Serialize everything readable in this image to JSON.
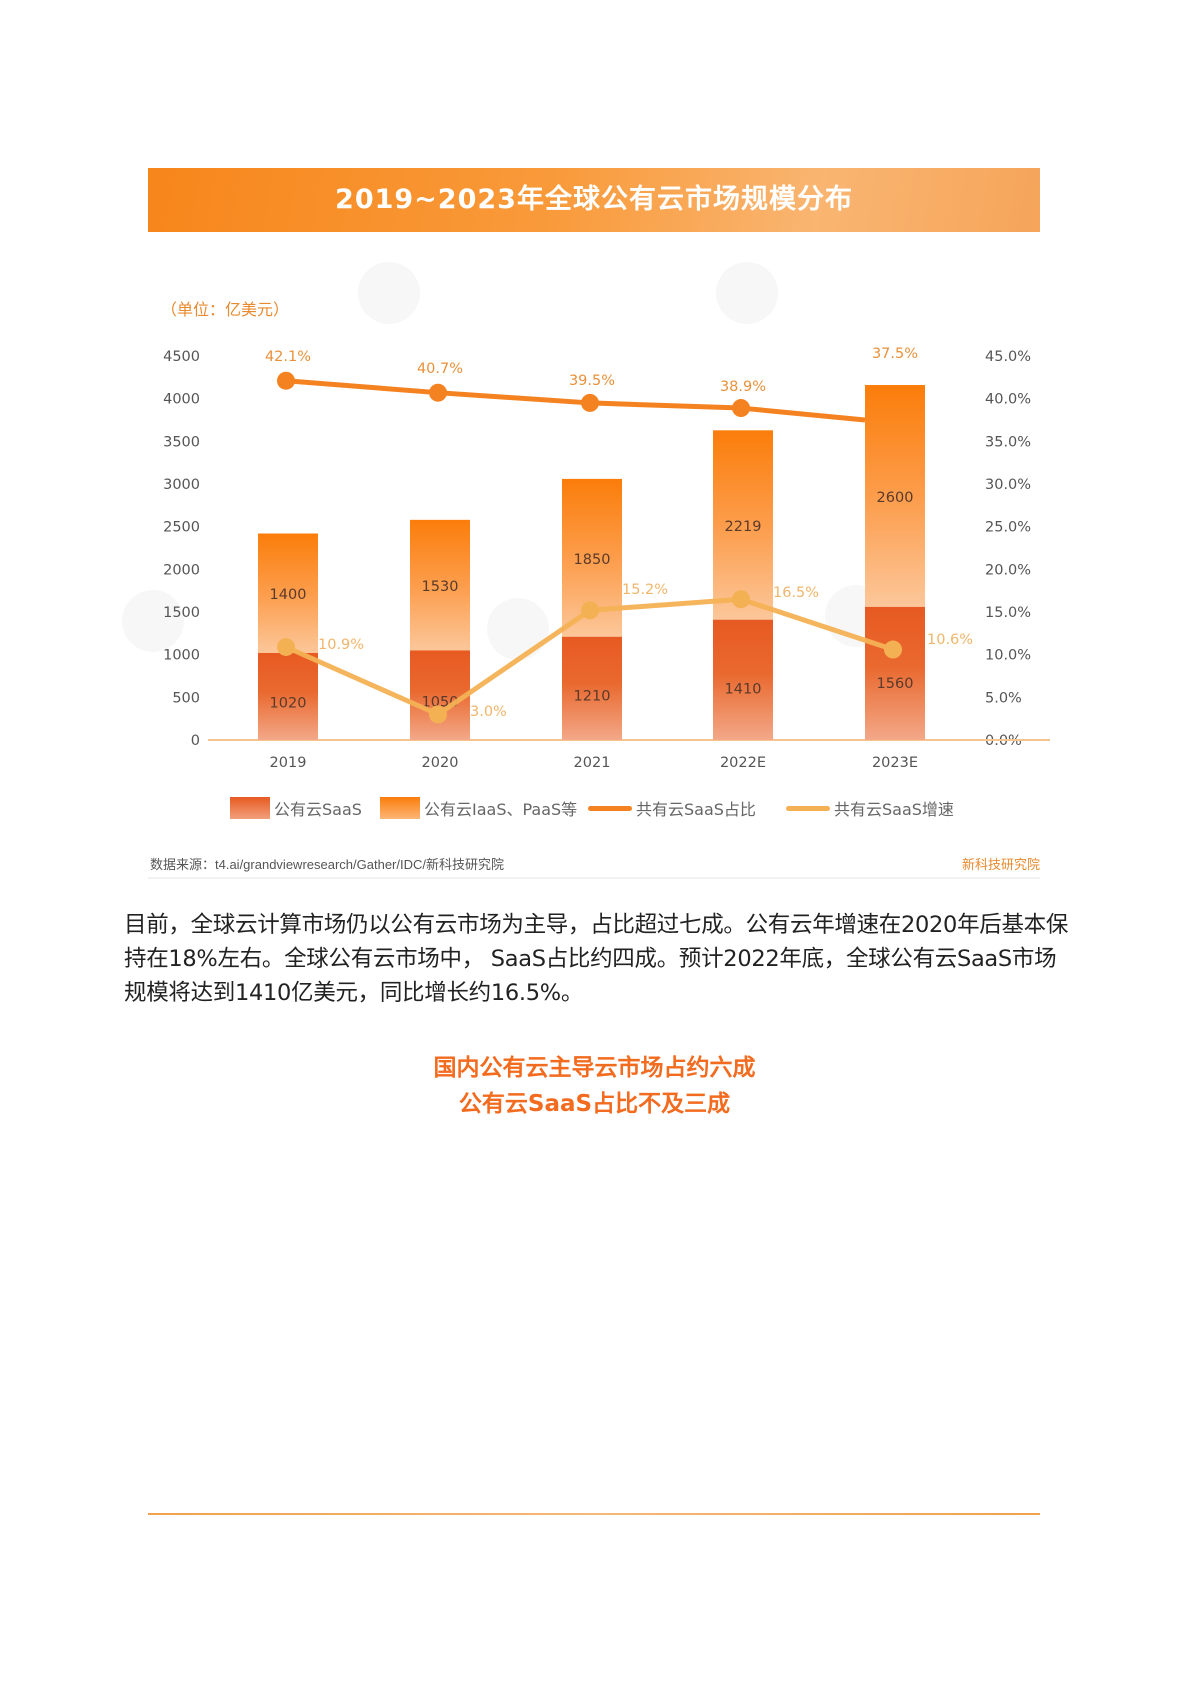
{
  "chart_header": {
    "title": "2019~2023年全球公有云市场规模分布",
    "unit": "（单位：亿美元）"
  },
  "chart_data": {
    "type": "bar",
    "subtype": "stacked bar with dual-axis lines",
    "title": "2019~2023年全球公有云市场规模分布",
    "unit": "亿美元",
    "categories": [
      "2019",
      "2020",
      "2021",
      "2022E",
      "2023E"
    ],
    "series": [
      {
        "name": "公有云SaaS",
        "kind": "bar",
        "axis": "left",
        "values": [
          1020,
          1050,
          1210,
          1410,
          1560
        ],
        "color": "#e85d25"
      },
      {
        "name": "公有云IaaS、PaaS等",
        "kind": "bar",
        "axis": "left",
        "values": [
          1400,
          1530,
          1850,
          2219,
          2600
        ],
        "color": "#f98214"
      },
      {
        "name": "共有云SaaS占比",
        "kind": "line",
        "axis": "right",
        "values": [
          42.1,
          40.7,
          39.5,
          38.9,
          37.5
        ],
        "labels": [
          "42.1%",
          "40.7%",
          "39.5%",
          "38.9%",
          "37.5%"
        ],
        "color": "#f58220"
      },
      {
        "name": "共有云SaaS增速",
        "kind": "line",
        "axis": "right",
        "values": [
          10.9,
          3.0,
          15.2,
          16.5,
          10.6
        ],
        "labels": [
          "10.9%",
          "3.0%",
          "15.2%",
          "16.5%",
          "10.6%"
        ],
        "color": "#f4b154"
      }
    ],
    "left_axis": {
      "ylim": [
        0,
        4500
      ],
      "ticks": [
        "0",
        "500",
        "1000",
        "1500",
        "2000",
        "2500",
        "3000",
        "3500",
        "4000",
        "4500"
      ]
    },
    "right_axis": {
      "ylim": [
        0,
        45
      ],
      "ticks": [
        "0.0%",
        "5.0%",
        "10.0%",
        "15.0%",
        "20.0%",
        "25.0%",
        "30.0%",
        "35.0%",
        "40.0%",
        "45.0%"
      ]
    },
    "xlabel": "",
    "ylabel": "亿美元",
    "grid": false,
    "legend_position": "bottom"
  },
  "legend": {
    "items": [
      {
        "label": "公有云SaaS"
      },
      {
        "label": "公有云IaaS、PaaS等"
      },
      {
        "label": "共有云SaaS占比"
      },
      {
        "label": "共有云SaaS增速"
      }
    ]
  },
  "source": {
    "text": "数据来源：t4.ai/grandviewresearch/Gather/IDC/新科技研究院",
    "brand": "新科技研究院"
  },
  "article": {
    "paragraph": "目前，全球云计算市场仍以公有云市场为主导，占比超过七成。公有云年增速在2020年后基本保持在18%左右。全球公有云市场中， SaaS占比约四成。预计2022年底，全球公有云SaaS市场规模将达到1410亿美元，同比增长约16.5%。",
    "heading_line1": "国内公有云主导云市场占约六成",
    "heading_line2": "公有云SaaS占比不及三成"
  },
  "colors": {
    "accent": "#f58220",
    "saas_bar": "#e85d25",
    "iaas_bar": "#f98214",
    "growth_line": "#f4b154",
    "heading": "#f26b1f"
  }
}
